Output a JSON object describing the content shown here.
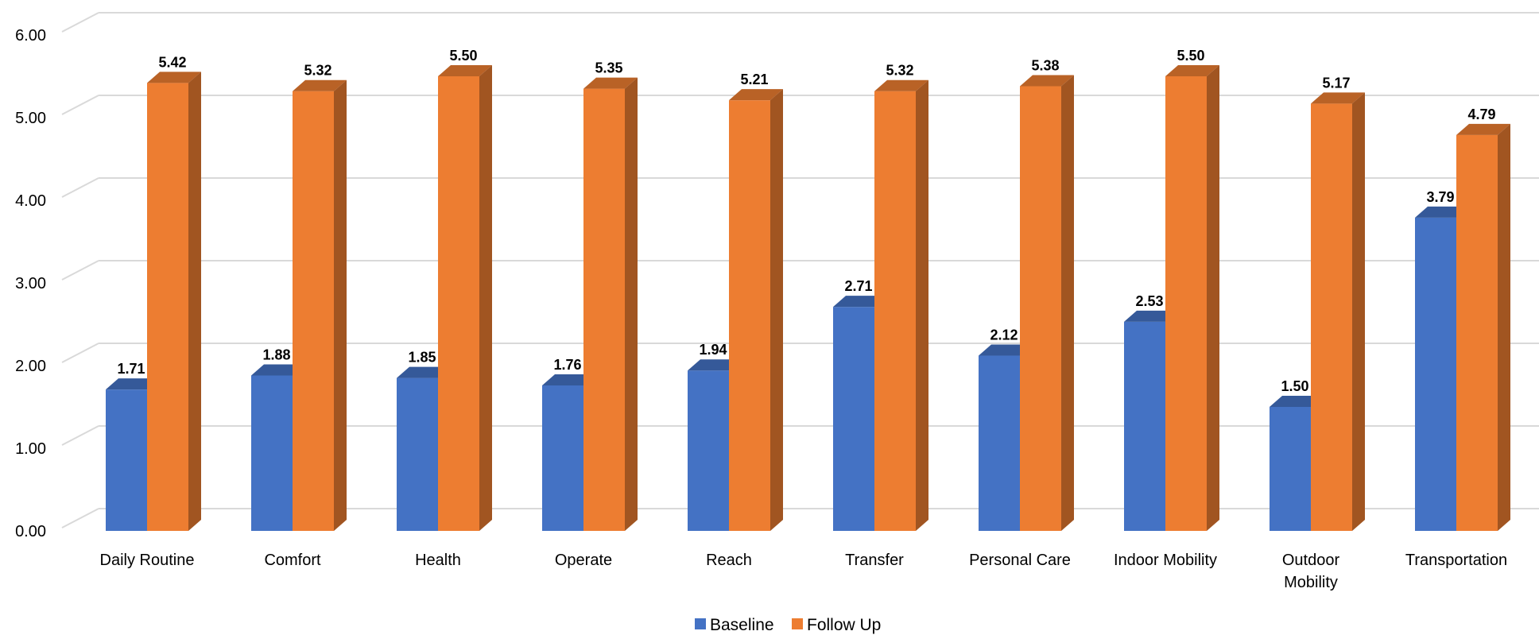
{
  "chart_data": {
    "type": "bar",
    "categories": [
      [
        "Daily Routine"
      ],
      [
        "Comfort"
      ],
      [
        "Health"
      ],
      [
        "Operate"
      ],
      [
        "Reach"
      ],
      [
        "Transfer"
      ],
      [
        "Personal Care"
      ],
      [
        "Indoor Mobility"
      ],
      [
        "Outdoor",
        "Mobility"
      ],
      [
        "Transportation"
      ]
    ],
    "series": [
      {
        "name": "Baseline",
        "color": "#4472C4",
        "values": [
          1.71,
          1.88,
          1.85,
          1.76,
          1.94,
          2.71,
          2.12,
          2.53,
          1.5,
          3.79
        ]
      },
      {
        "name": "Follow Up",
        "color": "#ED7D31",
        "values": [
          5.42,
          5.32,
          5.5,
          5.35,
          5.21,
          5.32,
          5.38,
          5.5,
          5.17,
          4.79
        ]
      }
    ],
    "y_ticks": [
      "0.00",
      "1.00",
      "2.00",
      "3.00",
      "4.00",
      "5.00",
      "6.00"
    ],
    "ylim": [
      0,
      6
    ],
    "value_format_decimals": 2,
    "grid": true,
    "legend_position": "bottom",
    "title": "",
    "xlabel": "",
    "ylabel": ""
  }
}
